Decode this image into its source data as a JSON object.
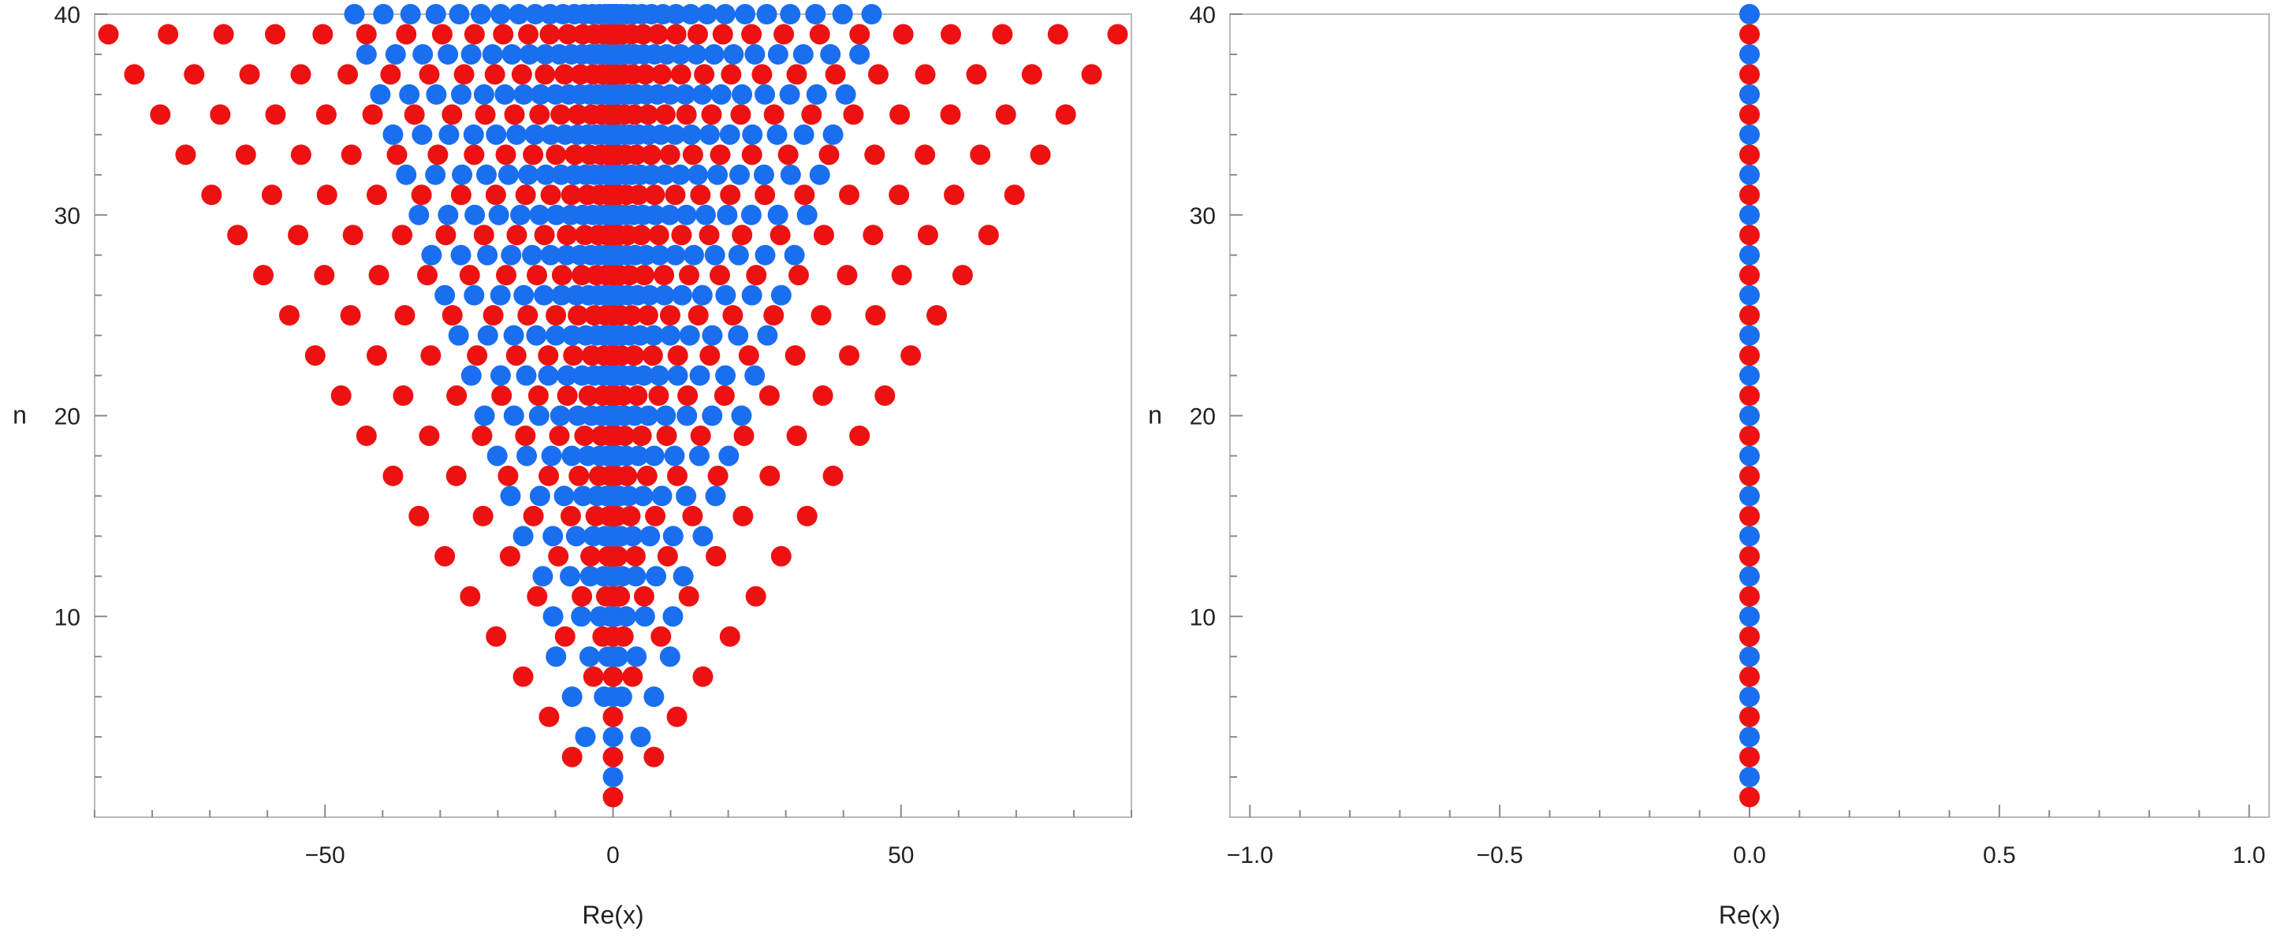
{
  "chart_data": [
    {
      "type": "scatter",
      "xlabel": "Re(x)",
      "ylabel": "n",
      "xlim": [
        -90,
        90
      ],
      "ylim": [
        0,
        40
      ],
      "xticks": [
        -50,
        0,
        50
      ],
      "xtick_labels": [
        "−50",
        "0",
        "50"
      ],
      "yticks": [
        10,
        20,
        30,
        40
      ],
      "ytick_labels": [
        "10",
        "20",
        "30",
        "40"
      ],
      "grid": false,
      "colors": {
        "even_n": "#1a6ff0",
        "odd_n": "#ee1111"
      },
      "series": [
        {
          "rows": "n = 1 … 40",
          "description_of_values": "real parts of the n roots for each n",
          "points_per_row": "n"
        }
      ],
      "outer_points": [
        {
          "n": 1,
          "x": [
            0
          ]
        },
        {
          "n": 2,
          "x": [
            0
          ]
        },
        {
          "n": 3,
          "x": [
            -7.1,
            0,
            7.1
          ]
        },
        {
          "n": 4,
          "x": [
            -4.8,
            4.8
          ]
        },
        {
          "n": 5,
          "x": [
            -11.1,
            11.1
          ]
        },
        {
          "n": 6,
          "x": [
            -7.1,
            7.1
          ]
        },
        {
          "n": 7,
          "x": [
            -15.6,
            15.6
          ]
        },
        {
          "n": 8,
          "x": [
            -9.9,
            9.9
          ]
        },
        {
          "n": 9,
          "x": [
            -20.3,
            20.3
          ]
        },
        {
          "n": 10,
          "x": [
            -10.4,
            10.4
          ]
        },
        {
          "n": 11,
          "x": [
            -24.8,
            24.8
          ]
        },
        {
          "n": 12,
          "x": [
            -12.2,
            12.2
          ]
        },
        {
          "n": 13,
          "x": [
            -29.2,
            29.2
          ]
        },
        {
          "n": 14,
          "x": [
            -15.6,
            15.6
          ]
        },
        {
          "n": 15,
          "x": [
            -33.7,
            33.7
          ]
        },
        {
          "n": 16,
          "x": [
            -17.8,
            17.8
          ]
        },
        {
          "n": 17,
          "x": [
            -38.2,
            38.2
          ]
        },
        {
          "n": 18,
          "x": [
            -20.1,
            20.1
          ]
        },
        {
          "n": 19,
          "x": [
            -42.8,
            42.8
          ]
        },
        {
          "n": 20,
          "x": [
            -22.3,
            22.3
          ]
        },
        {
          "n": 21,
          "x": [
            -47.2,
            47.2
          ]
        },
        {
          "n": 22,
          "x": [
            -24.6,
            24.6
          ]
        },
        {
          "n": 23,
          "x": [
            -51.7,
            51.7
          ]
        },
        {
          "n": 24,
          "x": [
            -26.8,
            26.8
          ]
        },
        {
          "n": 25,
          "x": [
            -56.2,
            56.2
          ]
        },
        {
          "n": 26,
          "x": [
            -29.2,
            29.2
          ]
        },
        {
          "n": 27,
          "x": [
            -60.7,
            60.7
          ]
        },
        {
          "n": 28,
          "x": [
            -31.5,
            31.5
          ]
        },
        {
          "n": 29,
          "x": [
            -65.2,
            65.2
          ]
        },
        {
          "n": 30,
          "x": [
            -33.7,
            33.7
          ]
        },
        {
          "n": 31,
          "x": [
            -69.7,
            69.7
          ]
        },
        {
          "n": 32,
          "x": [
            -35.9,
            35.9
          ]
        },
        {
          "n": 33,
          "x": [
            -74.2,
            74.2
          ]
        },
        {
          "n": 34,
          "x": [
            -38.2,
            38.2
          ]
        },
        {
          "n": 35,
          "x": [
            -78.6,
            78.6
          ]
        },
        {
          "n": 36,
          "x": [
            -40.4,
            40.4
          ]
        },
        {
          "n": 37,
          "x": [
            -83.1,
            83.1
          ]
        },
        {
          "n": 38,
          "x": [
            -42.8,
            42.8
          ]
        },
        {
          "n": 39,
          "x": [
            -87.6,
            87.6
          ]
        },
        {
          "n": 40,
          "x": [
            -44.9,
            44.9
          ]
        }
      ]
    },
    {
      "type": "scatter",
      "xlabel": "Re(x)",
      "ylabel": "n",
      "xlim": [
        -1.04,
        1.04
      ],
      "ylim": [
        0,
        40
      ],
      "xticks": [
        -1.0,
        -0.5,
        0.0,
        0.5,
        1.0
      ],
      "xtick_labels": [
        "−1.0",
        "−0.5",
        "0.0",
        "0.5",
        "1.0"
      ],
      "yticks": [
        10,
        20,
        30,
        40
      ],
      "ytick_labels": [
        "10",
        "20",
        "30",
        "40"
      ],
      "grid": false,
      "colors": {
        "even_n": "#1a6ff0",
        "odd_n": "#ee1111"
      },
      "points": [
        {
          "n": 1,
          "x": 0
        },
        {
          "n": 2,
          "x": 0
        },
        {
          "n": 3,
          "x": 0
        },
        {
          "n": 4,
          "x": 0
        },
        {
          "n": 5,
          "x": 0
        },
        {
          "n": 6,
          "x": 0
        },
        {
          "n": 7,
          "x": 0
        },
        {
          "n": 8,
          "x": 0
        },
        {
          "n": 9,
          "x": 0
        },
        {
          "n": 10,
          "x": 0
        },
        {
          "n": 11,
          "x": 0
        },
        {
          "n": 12,
          "x": 0
        },
        {
          "n": 13,
          "x": 0
        },
        {
          "n": 14,
          "x": 0
        },
        {
          "n": 15,
          "x": 0
        },
        {
          "n": 16,
          "x": 0
        },
        {
          "n": 17,
          "x": 0
        },
        {
          "n": 18,
          "x": 0
        },
        {
          "n": 19,
          "x": 0
        },
        {
          "n": 20,
          "x": 0
        },
        {
          "n": 21,
          "x": 0
        },
        {
          "n": 22,
          "x": 0
        },
        {
          "n": 23,
          "x": 0
        },
        {
          "n": 24,
          "x": 0
        },
        {
          "n": 25,
          "x": 0
        },
        {
          "n": 26,
          "x": 0
        },
        {
          "n": 27,
          "x": 0
        },
        {
          "n": 28,
          "x": 0
        },
        {
          "n": 29,
          "x": 0
        },
        {
          "n": 30,
          "x": 0
        },
        {
          "n": 31,
          "x": 0
        },
        {
          "n": 32,
          "x": 0
        },
        {
          "n": 33,
          "x": 0
        },
        {
          "n": 34,
          "x": 0
        },
        {
          "n": 35,
          "x": 0
        },
        {
          "n": 36,
          "x": 0
        },
        {
          "n": 37,
          "x": 0
        },
        {
          "n": 38,
          "x": 0
        },
        {
          "n": 39,
          "x": 0
        },
        {
          "n": 40,
          "x": 0
        }
      ]
    }
  ]
}
